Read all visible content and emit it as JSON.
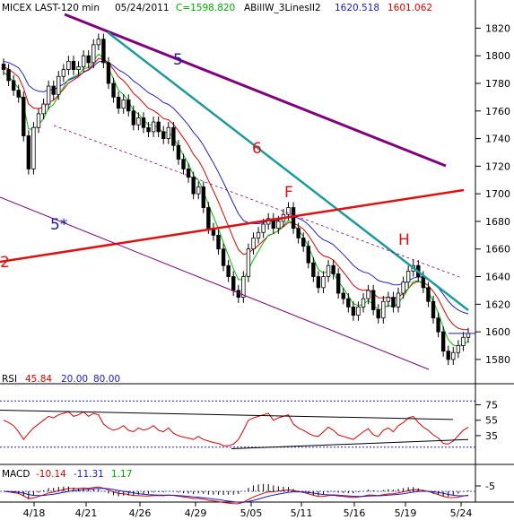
{
  "header": {
    "symbol": "MICEX LAST-120 min",
    "date": "05/24/2011",
    "close": "C=1598.820",
    "indicator": "ABillW_3LinesII2",
    "v1": "1620.518",
    "v2": "1601.062"
  },
  "annotations": [
    {
      "text": "5",
      "color": "#1a1a9a"
    },
    {
      "text": "6",
      "color": "#e01010"
    },
    {
      "text": "F",
      "color": "#e01010"
    },
    {
      "text": "H",
      "color": "#e01010"
    },
    {
      "text": "5*",
      "color": "#1a1a9a"
    },
    {
      "text": "2",
      "color": "#e01010"
    }
  ],
  "rsi_header": {
    "label": "RSI",
    "value": "45.84",
    "low": "20.00",
    "high": "80.00"
  },
  "macd_header": {
    "label": "MACD",
    "v1": "-10.14",
    "v2": "-11.31",
    "v3": "1.17"
  },
  "x_ticks": [
    "4/18",
    "4/21",
    "4/26",
    "4/29",
    "5/05",
    "5/11",
    "5/16",
    "5/19",
    "5/24"
  ],
  "colors": {
    "up": "#00aa00",
    "down": "#dd0000",
    "trend_teal": "#1a9a9a",
    "trend_purple": "#800080",
    "trend_red": "#e01010",
    "blue_line": "#2020cc",
    "green_line": "#00bb00",
    "red_line": "#dd0000"
  },
  "chart_data": [
    {
      "type": "candlestick",
      "ylim": [
        1565,
        1830
      ],
      "yticks": [
        1580,
        1600,
        1620,
        1640,
        1660,
        1680,
        1700,
        1720,
        1740,
        1760,
        1780,
        1800,
        1820
      ],
      "last_price": 1598.82,
      "close": [
        1790,
        1782,
        1775,
        1770,
        1742,
        1718,
        1748,
        1758,
        1765,
        1778,
        1772,
        1785,
        1790,
        1796,
        1790,
        1792,
        1800,
        1795,
        1808,
        1812,
        1795,
        1780,
        1770,
        1762,
        1768,
        1760,
        1750,
        1755,
        1748,
        1745,
        1752,
        1745,
        1740,
        1748,
        1735,
        1725,
        1718,
        1712,
        1700,
        1705,
        1690,
        1675,
        1670,
        1660,
        1648,
        1640,
        1630,
        1625,
        1640,
        1660,
        1668,
        1672,
        1678,
        1682,
        1675,
        1680,
        1685,
        1690,
        1675,
        1668,
        1662,
        1650,
        1640,
        1632,
        1640,
        1648,
        1642,
        1628,
        1624,
        1618,
        1612,
        1618,
        1624,
        1630,
        1616,
        1610,
        1622,
        1625,
        1618,
        1628,
        1636,
        1644,
        1648,
        1640,
        1632,
        1622,
        1610,
        1600,
        1586,
        1580,
        1585,
        1590,
        1596,
        1598.82
      ]
    },
    {
      "type": "line",
      "name": "RSI",
      "ylim": [
        0,
        100
      ],
      "yticks": [
        35,
        55,
        75
      ],
      "levels": [
        20,
        80
      ],
      "values": [
        55,
        52,
        48,
        40,
        30,
        38,
        45,
        50,
        55,
        60,
        58,
        62,
        64,
        66,
        60,
        62,
        66,
        60,
        64,
        62,
        50,
        45,
        42,
        44,
        48,
        42,
        40,
        45,
        42,
        44,
        48,
        42,
        40,
        45,
        38,
        35,
        33,
        32,
        30,
        34,
        30,
        28,
        26,
        25,
        22,
        22,
        24,
        30,
        42,
        55,
        58,
        60,
        62,
        64,
        55,
        58,
        60,
        62,
        50,
        45,
        42,
        38,
        35,
        34,
        40,
        46,
        42,
        36,
        34,
        32,
        30,
        35,
        40,
        44,
        36,
        34,
        42,
        45,
        40,
        48,
        52,
        58,
        60,
        52,
        46,
        42,
        36,
        32,
        25,
        24,
        28,
        35,
        42,
        45.84
      ]
    },
    {
      "type": "line",
      "name": "MACD",
      "values": [
        -10.14,
        -11.31,
        1.17
      ]
    }
  ]
}
